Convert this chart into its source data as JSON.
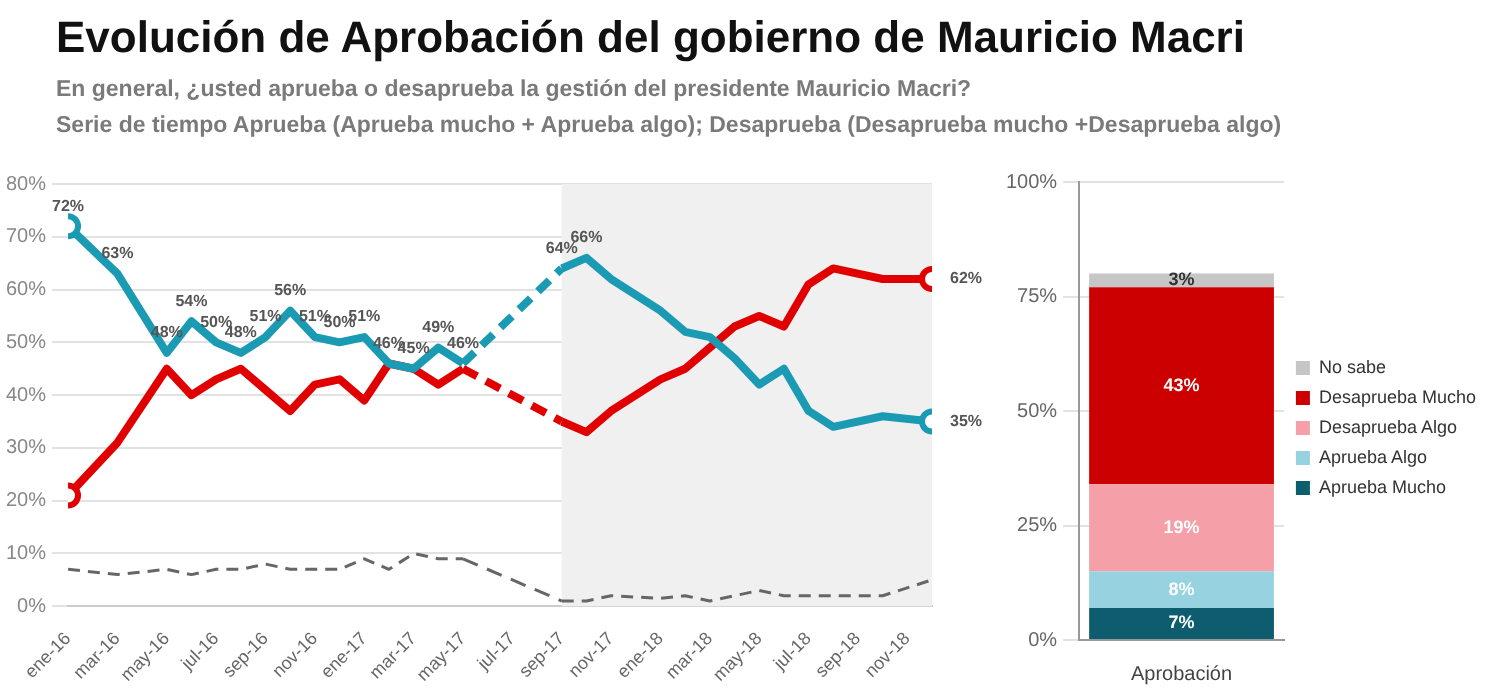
{
  "chart_data": [
    {
      "type": "line",
      "title": "Evolución de Aprobación del gobierno de Mauricio Macri",
      "subtitle": "En general, ¿usted aprueba o desaprueba la gestión del presidente Mauricio Macri?\nSerie de tiempo Aprueba (Aprueba mucho + Aprueba algo); Desaprueba (Desaprueba mucho +Desaprueba algo)",
      "x": [
        "2016-01",
        "2016-03",
        "2016-05",
        "2016-06",
        "2016-07",
        "2016-08",
        "2016-09",
        "2016-10",
        "2016-11",
        "2016-12",
        "2017-01",
        "2017-02",
        "2017-03",
        "2017-04",
        "2017-05",
        "2017-09",
        "2017-10",
        "2017-11",
        "2018-01",
        "2018-02",
        "2018-03",
        "2018-04",
        "2018-05",
        "2018-06",
        "2018-07",
        "2018-08",
        "2018-10",
        "2018-12"
      ],
      "series": [
        {
          "color": "#1b9ab3",
          "values": [
            72,
            63,
            48,
            54,
            50,
            48,
            51,
            56,
            51,
            50,
            51,
            46,
            45,
            49,
            46,
            64,
            66,
            62,
            56,
            52,
            51,
            47,
            42,
            45,
            37,
            34,
            36,
            35
          ],
          "value_labels": [
            "72%",
            "63%",
            "48%",
            "54%",
            "50%",
            "48%",
            "51%",
            "56%",
            "51%",
            "50%",
            "51%",
            "46%",
            "45%",
            "49%",
            "46%",
            "64%",
            "66%",
            null,
            null,
            null,
            null,
            null,
            null,
            null,
            null,
            null,
            null,
            "35%"
          ]
        },
        {
          "color": "#e00000",
          "values": [
            21,
            31,
            45,
            40,
            43,
            45,
            41,
            37,
            42,
            43,
            39,
            46,
            45,
            42,
            45,
            35,
            33,
            37,
            43,
            45,
            49,
            53,
            55,
            53,
            61,
            64,
            62,
            62
          ],
          "value_labels": [
            null,
            null,
            null,
            null,
            null,
            null,
            null,
            null,
            null,
            null,
            null,
            null,
            null,
            null,
            null,
            null,
            null,
            null,
            null,
            null,
            null,
            null,
            null,
            null,
            null,
            null,
            null,
            "62%"
          ]
        },
        {
          "color": "#666666",
          "line_style": "dashed",
          "values": [
            7,
            6,
            7,
            6,
            7,
            7,
            8,
            7,
            7,
            7,
            9,
            7,
            10,
            9,
            9,
            1,
            1,
            2,
            1.5,
            2,
            1,
            2,
            3,
            2,
            2,
            2,
            2,
            5
          ]
        }
      ],
      "xlim": [
        "2016-01",
        "2018-12"
      ],
      "xticks": [
        {
          "value": "2016-01",
          "label": "ene-16"
        },
        {
          "value": "2016-03",
          "label": "mar-16"
        },
        {
          "value": "2016-05",
          "label": "may-16"
        },
        {
          "value": "2016-07",
          "label": "jul-16"
        },
        {
          "value": "2016-09",
          "label": "sep-16"
        },
        {
          "value": "2016-11",
          "label": "nov-16"
        },
        {
          "value": "2017-01",
          "label": "ene-17"
        },
        {
          "value": "2017-03",
          "label": "mar-17"
        },
        {
          "value": "2017-05",
          "label": "may-17"
        },
        {
          "value": "2017-07",
          "label": "jul-17"
        },
        {
          "value": "2017-09",
          "label": "sep-17"
        },
        {
          "value": "2017-11",
          "label": "nov-17"
        },
        {
          "value": "2018-01",
          "label": "ene-18"
        },
        {
          "value": "2018-03",
          "label": "mar-18"
        },
        {
          "value": "2018-05",
          "label": "may-18"
        },
        {
          "value": "2018-07",
          "label": "jul-18"
        },
        {
          "value": "2018-09",
          "label": "sep-18"
        },
        {
          "value": "2018-11",
          "label": "nov-18"
        }
      ],
      "ylim": [
        0,
        80
      ],
      "yticks": [
        {
          "value": 0,
          "label": "0%"
        },
        {
          "value": 10,
          "label": "10%"
        },
        {
          "value": 20,
          "label": "20%"
        },
        {
          "value": 30,
          "label": "30%"
        },
        {
          "value": 40,
          "label": "40%"
        },
        {
          "value": 50,
          "label": "50%"
        },
        {
          "value": 60,
          "label": "60%"
        },
        {
          "value": 70,
          "label": "70%"
        },
        {
          "value": 80,
          "label": "80%"
        }
      ],
      "bands": [
        {
          "axis": "x",
          "from": "2017-09",
          "to": "2018-12",
          "color": "#f0f0f0"
        }
      ],
      "grid": "y",
      "legend": false
    },
    {
      "type": "bar",
      "stacked": true,
      "categories": [
        "Aprobación"
      ],
      "series": [
        {
          "name": "Aprueba Mucho",
          "color": "#0e5d6e",
          "values": [
            7
          ],
          "value_labels": [
            "7%"
          ]
        },
        {
          "name": "Aprueba Algo",
          "color": "#96d2df",
          "values": [
            8
          ],
          "value_labels": [
            "8%"
          ]
        },
        {
          "name": "Desaprueba Algo",
          "color": "#f5a0a8",
          "values": [
            19
          ],
          "value_labels": [
            "19%"
          ]
        },
        {
          "name": "Desaprueba Mucho",
          "color": "#cc0000",
          "values": [
            43
          ],
          "value_labels": [
            "43%"
          ]
        },
        {
          "name": "No sabe",
          "color": "#c6c6c6",
          "values": [
            3
          ],
          "value_labels": [
            "3%"
          ]
        }
      ],
      "ylim": [
        0,
        100
      ],
      "yticks": [
        {
          "value": 0,
          "label": "0%"
        },
        {
          "value": 25,
          "label": "25%"
        },
        {
          "value": 50,
          "label": "50%"
        },
        {
          "value": 75,
          "label": "75%"
        },
        {
          "value": 100,
          "label": "100%"
        }
      ],
      "grid": "y",
      "legend": "right"
    }
  ]
}
